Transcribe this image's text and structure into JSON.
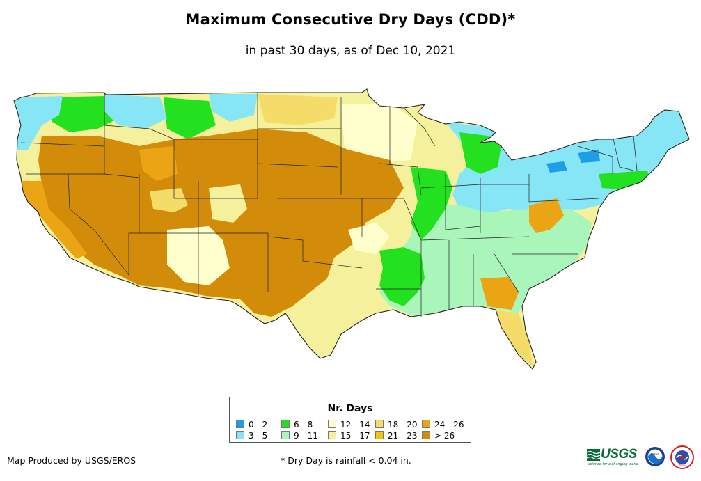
{
  "title": "Maximum Consecutive Dry Days (CDD)*",
  "subtitle": "in past 30 days, as of Dec 10, 2021",
  "legend": {
    "title": "Nr. Days",
    "items": [
      {
        "label": "0 - 2",
        "color": "#1e9ee6"
      },
      {
        "label": "3 - 5",
        "color": "#87e6f5"
      },
      {
        "label": "6 - 8",
        "color": "#23e11f"
      },
      {
        "label": "9 - 11",
        "color": "#aaf5b9"
      },
      {
        "label": "12 - 14",
        "color": "#ffffcd"
      },
      {
        "label": "15 - 17",
        "color": "#f5f09b"
      },
      {
        "label": "18 - 20",
        "color": "#f5dc69"
      },
      {
        "label": "21 - 23",
        "color": "#f5c30a"
      },
      {
        "label": "24 - 26",
        "color": "#eba514"
      },
      {
        "label": "> 26",
        "color": "#d28c0a"
      }
    ]
  },
  "footer": {
    "credit": "Map Produced by USGS/EROS",
    "note": "* Dry Day is rainfall < 0.04 in."
  },
  "logos": {
    "usgs_word": "USGS",
    "usgs_tagline": "science for a changing world",
    "noaa": "noaa",
    "nws": "NWS"
  }
}
